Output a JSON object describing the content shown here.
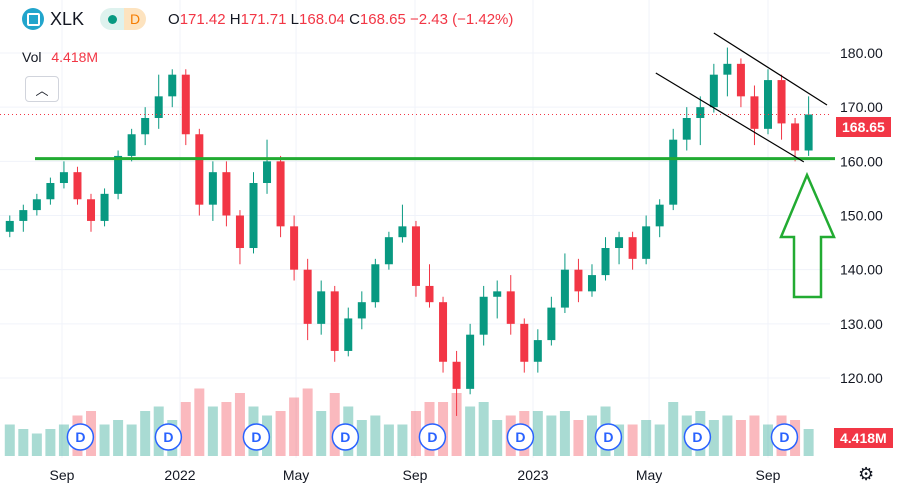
{
  "header": {
    "symbol": "XLK",
    "interval": "D",
    "o_label": "O",
    "o": "171.42",
    "h_label": "H",
    "h": "171.71",
    "l_label": "L",
    "l": "168.04",
    "c_label": "C",
    "c": "168.65",
    "change": "−2.43 (−1.42%)"
  },
  "volume": {
    "label": "Vol",
    "value": "4.418M"
  },
  "price_tag": "168.65",
  "volume_tag": "4.418M",
  "colors": {
    "up": "#089981",
    "down": "#f23645",
    "annotation": "#22ab32",
    "channel": "#000000"
  },
  "chart_data": {
    "type": "candlestick",
    "y_ticks": [
      "180.00",
      "170.00",
      "160.00",
      "150.00",
      "140.00",
      "130.00",
      "120.00"
    ],
    "x_ticks": [
      {
        "date": "2021-09-01",
        "label": "Sep"
      },
      {
        "date": "2022-01-01",
        "label": "2022"
      },
      {
        "date": "2022-05-01",
        "label": "May"
      },
      {
        "date": "2022-09-01",
        "label": "Sep"
      },
      {
        "date": "2023-01-01",
        "label": "2023"
      },
      {
        "date": "2023-05-01",
        "label": "May"
      },
      {
        "date": "2023-09-01",
        "label": "Sep"
      }
    ],
    "ylim": [
      105.8,
      189.8
    ],
    "xlim": [
      "2021-07-09",
      "2023-11-05"
    ],
    "grid": true,
    "candles": [
      [
        "2021-07-09",
        147,
        150,
        146,
        149,
        7
      ],
      [
        "2021-07-23",
        149,
        152,
        147,
        151,
        6
      ],
      [
        "2021-08-06",
        151,
        154,
        150,
        153,
        5
      ],
      [
        "2021-08-20",
        153,
        157,
        152,
        156,
        6
      ],
      [
        "2021-09-03",
        156,
        160,
        155,
        158,
        7
      ],
      [
        "2021-09-17",
        158,
        159,
        152,
        153,
        9
      ],
      [
        "2021-10-01",
        153,
        154,
        147,
        149,
        10
      ],
      [
        "2021-10-15",
        149,
        155,
        148,
        154,
        7
      ],
      [
        "2021-10-29",
        154,
        162,
        153,
        161,
        8
      ],
      [
        "2021-11-12",
        161,
        166,
        160,
        165,
        7
      ],
      [
        "2021-11-26",
        165,
        170,
        163,
        168,
        10
      ],
      [
        "2021-12-10",
        168,
        176,
        166,
        172,
        11
      ],
      [
        "2021-12-24",
        172,
        177,
        170,
        176,
        8
      ],
      [
        "2022-01-07",
        176,
        177,
        163,
        165,
        12
      ],
      [
        "2022-01-21",
        165,
        166,
        150,
        152,
        15
      ],
      [
        "2022-02-04",
        152,
        160,
        149,
        158,
        11
      ],
      [
        "2022-02-18",
        158,
        160,
        148,
        150,
        12
      ],
      [
        "2022-03-04",
        150,
        151,
        141,
        144,
        14
      ],
      [
        "2022-03-18",
        144,
        158,
        143,
        156,
        11
      ],
      [
        "2022-04-01",
        156,
        164,
        154,
        160,
        9
      ],
      [
        "2022-04-15",
        160,
        161,
        146,
        148,
        10
      ],
      [
        "2022-04-29",
        148,
        150,
        138,
        140,
        13
      ],
      [
        "2022-05-13",
        140,
        142,
        127,
        130,
        15
      ],
      [
        "2022-05-27",
        130,
        138,
        128,
        136,
        10
      ],
      [
        "2022-06-10",
        136,
        137,
        123,
        125,
        14
      ],
      [
        "2022-06-24",
        125,
        133,
        124,
        131,
        11
      ],
      [
        "2022-07-08",
        131,
        136,
        129,
        134,
        8
      ],
      [
        "2022-07-22",
        134,
        142,
        133,
        141,
        9
      ],
      [
        "2022-08-05",
        141,
        147,
        140,
        146,
        7
      ],
      [
        "2022-08-19",
        146,
        152,
        145,
        148,
        7
      ],
      [
        "2022-09-02",
        148,
        149,
        135,
        137,
        10
      ],
      [
        "2022-09-16",
        137,
        141,
        133,
        134,
        12
      ],
      [
        "2022-09-30",
        134,
        135,
        121,
        123,
        12
      ],
      [
        "2022-10-14",
        123,
        125,
        113,
        118,
        14
      ],
      [
        "2022-10-28",
        118,
        130,
        117,
        128,
        11
      ],
      [
        "2022-11-11",
        128,
        137,
        126,
        135,
        12
      ],
      [
        "2022-11-25",
        135,
        138,
        131,
        136,
        8
      ],
      [
        "2022-12-09",
        136,
        139,
        128,
        130,
        9
      ],
      [
        "2022-12-23",
        130,
        131,
        121,
        123,
        10
      ],
      [
        "2023-01-06",
        123,
        129,
        121,
        127,
        10
      ],
      [
        "2023-01-20",
        127,
        135,
        126,
        133,
        9
      ],
      [
        "2023-02-03",
        133,
        143,
        132,
        140,
        10
      ],
      [
        "2023-02-17",
        140,
        142,
        134,
        136,
        8
      ],
      [
        "2023-03-03",
        136,
        141,
        135,
        139,
        9
      ],
      [
        "2023-03-17",
        139,
        146,
        138,
        144,
        11
      ],
      [
        "2023-03-31",
        144,
        147,
        141,
        146,
        7
      ],
      [
        "2023-04-14",
        146,
        147,
        140,
        142,
        7
      ],
      [
        "2023-04-28",
        142,
        150,
        141,
        148,
        8
      ],
      [
        "2023-05-12",
        148,
        153,
        146,
        152,
        7
      ],
      [
        "2023-05-26",
        152,
        166,
        151,
        164,
        12
      ],
      [
        "2023-06-09",
        164,
        170,
        162,
        168,
        9
      ],
      [
        "2023-06-23",
        168,
        172,
        163,
        170,
        10
      ],
      [
        "2023-07-07",
        170,
        178,
        169,
        176,
        8
      ],
      [
        "2023-07-21",
        176,
        181,
        172,
        178,
        9
      ],
      [
        "2023-08-04",
        178,
        179,
        170,
        172,
        8
      ],
      [
        "2023-08-18",
        172,
        174,
        163,
        166,
        9
      ],
      [
        "2023-09-01",
        166,
        177,
        165,
        175,
        7
      ],
      [
        "2023-09-15",
        175,
        176,
        164,
        167,
        9
      ],
      [
        "2023-09-29",
        167,
        168,
        160,
        162,
        8
      ],
      [
        "2023-10-13",
        162,
        172,
        161,
        168.65,
        6
      ]
    ],
    "dividends": [
      "2021-09-20",
      "2021-12-20",
      "2022-03-21",
      "2022-06-21",
      "2022-09-19",
      "2022-12-19",
      "2023-03-20",
      "2023-06-20",
      "2023-09-18"
    ],
    "dividend_label": "D",
    "support_line": 160.5,
    "channel": [
      {
        "from": [
          "2023-07-07",
          183.7
        ],
        "to": [
          "2023-11-01",
          170.4
        ]
      },
      {
        "from": [
          "2023-05-08",
          176.3
        ],
        "to": [
          "2023-10-08",
          159.9
        ]
      }
    ],
    "last_price": 168.65
  }
}
